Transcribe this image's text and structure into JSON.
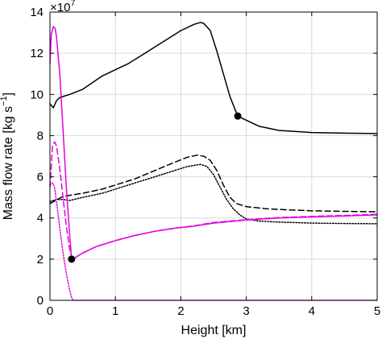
{
  "chart_data": {
    "type": "line",
    "xlabel": "Height [km]",
    "ylabel": {
      "prefix": "Mass flow rate [kg s",
      "superscript": "−1",
      "suffix": "]"
    },
    "multiplier": {
      "base": "×10",
      "exponent": "7"
    },
    "xlim": [
      0,
      5
    ],
    "ylim": [
      0,
      14
    ],
    "xticks": [
      0,
      1,
      2,
      3,
      4,
      5
    ],
    "yticks": [
      0,
      2,
      4,
      6,
      8,
      10,
      12,
      14
    ],
    "grid": true,
    "colors": {
      "black": "#000000",
      "magenta": "#e300e3"
    },
    "series": [
      {
        "color": "#000000",
        "dash": "solid",
        "points": [
          [
            0,
            9.55
          ],
          [
            0.05,
            9.35
          ],
          [
            0.1,
            9.7
          ],
          [
            0.15,
            9.85
          ],
          [
            0.3,
            10.0
          ],
          [
            0.5,
            10.25
          ],
          [
            0.8,
            10.9
          ],
          [
            1.0,
            11.2
          ],
          [
            1.2,
            11.5
          ],
          [
            1.4,
            11.9
          ],
          [
            1.6,
            12.3
          ],
          [
            1.8,
            12.7
          ],
          [
            2.0,
            13.1
          ],
          [
            2.2,
            13.4
          ],
          [
            2.3,
            13.5
          ],
          [
            2.35,
            13.45
          ],
          [
            2.45,
            13.1
          ],
          [
            2.55,
            12.1
          ],
          [
            2.65,
            11.0
          ],
          [
            2.75,
            9.9
          ],
          [
            2.85,
            9.1
          ],
          [
            2.9,
            8.9
          ],
          [
            3.0,
            8.75
          ],
          [
            3.2,
            8.45
          ],
          [
            3.5,
            8.25
          ],
          [
            4.0,
            8.15
          ],
          [
            4.5,
            8.12
          ],
          [
            5.0,
            8.1
          ]
        ]
      },
      {
        "color": "#000000",
        "dash": "dashed",
        "points": [
          [
            0,
            4.7
          ],
          [
            0.2,
            5.05
          ],
          [
            0.5,
            5.2
          ],
          [
            0.8,
            5.4
          ],
          [
            1.0,
            5.6
          ],
          [
            1.3,
            5.9
          ],
          [
            1.6,
            6.3
          ],
          [
            1.9,
            6.7
          ],
          [
            2.1,
            6.95
          ],
          [
            2.25,
            7.05
          ],
          [
            2.35,
            7.0
          ],
          [
            2.45,
            6.8
          ],
          [
            2.55,
            6.3
          ],
          [
            2.65,
            5.6
          ],
          [
            2.75,
            5.0
          ],
          [
            2.85,
            4.7
          ],
          [
            3.0,
            4.55
          ],
          [
            3.3,
            4.45
          ],
          [
            3.6,
            4.4
          ],
          [
            4.0,
            4.35
          ],
          [
            4.5,
            4.32
          ],
          [
            5.0,
            4.3
          ]
        ]
      },
      {
        "color": "#000000",
        "dash": "dotted",
        "points": [
          [
            0,
            4.8
          ],
          [
            0.1,
            4.9
          ],
          [
            0.2,
            4.9
          ],
          [
            0.3,
            4.85
          ],
          [
            0.5,
            5.0
          ],
          [
            0.8,
            5.2
          ],
          [
            1.0,
            5.4
          ],
          [
            1.3,
            5.7
          ],
          [
            1.6,
            6.0
          ],
          [
            1.9,
            6.3
          ],
          [
            2.1,
            6.5
          ],
          [
            2.3,
            6.6
          ],
          [
            2.4,
            6.5
          ],
          [
            2.5,
            6.1
          ],
          [
            2.6,
            5.5
          ],
          [
            2.7,
            4.9
          ],
          [
            2.8,
            4.45
          ],
          [
            2.9,
            4.15
          ],
          [
            3.0,
            3.95
          ],
          [
            3.2,
            3.85
          ],
          [
            3.5,
            3.8
          ],
          [
            4.0,
            3.75
          ],
          [
            4.5,
            3.73
          ],
          [
            5.0,
            3.72
          ]
        ]
      },
      {
        "color": "#e300e3",
        "dash": "solid",
        "points": [
          [
            0,
            11.5
          ],
          [
            0.02,
            12.9
          ],
          [
            0.05,
            13.3
          ],
          [
            0.08,
            13.2
          ],
          [
            0.1,
            12.8
          ],
          [
            0.15,
            11.0
          ],
          [
            0.2,
            8.3
          ],
          [
            0.25,
            5.5
          ],
          [
            0.3,
            3.2
          ],
          [
            0.33,
            2.05
          ],
          [
            0.36,
            2.0
          ],
          [
            0.4,
            2.1
          ],
          [
            0.5,
            2.3
          ],
          [
            0.7,
            2.6
          ],
          [
            1.0,
            2.9
          ],
          [
            1.3,
            3.15
          ],
          [
            1.6,
            3.35
          ],
          [
            1.9,
            3.5
          ],
          [
            2.2,
            3.6
          ],
          [
            2.5,
            3.75
          ],
          [
            3.0,
            3.9
          ],
          [
            3.5,
            4.0
          ],
          [
            4.0,
            4.05
          ],
          [
            4.5,
            4.1
          ],
          [
            5.0,
            4.15
          ]
        ]
      },
      {
        "color": "#e300e3",
        "dash": "dashed",
        "points": [
          [
            0,
            5.5
          ],
          [
            0.04,
            7.5
          ],
          [
            0.07,
            7.7
          ],
          [
            0.1,
            7.5
          ],
          [
            0.15,
            6.4
          ],
          [
            0.2,
            5.0
          ],
          [
            0.25,
            3.6
          ],
          [
            0.3,
            2.5
          ],
          [
            0.34,
            2.0
          ],
          [
            0.4,
            2.1
          ],
          [
            0.5,
            2.3
          ],
          [
            0.7,
            2.6
          ],
          [
            1.0,
            2.9
          ],
          [
            1.3,
            3.15
          ],
          [
            1.6,
            3.35
          ],
          [
            1.9,
            3.5
          ],
          [
            2.2,
            3.62
          ],
          [
            2.5,
            3.78
          ],
          [
            3.0,
            3.92
          ],
          [
            3.5,
            4.02
          ],
          [
            4.0,
            4.08
          ],
          [
            4.5,
            4.12
          ],
          [
            5.0,
            4.18
          ]
        ]
      },
      {
        "color": "#e300e3",
        "dash": "dotted",
        "points": [
          [
            0,
            5.6
          ],
          [
            0.04,
            5.7
          ],
          [
            0.07,
            5.5
          ],
          [
            0.1,
            4.8
          ],
          [
            0.15,
            3.5
          ],
          [
            0.2,
            2.3
          ],
          [
            0.25,
            1.3
          ],
          [
            0.3,
            0.5
          ],
          [
            0.33,
            0.15
          ],
          [
            0.35,
            0.0
          ],
          [
            5.0,
            0.0
          ]
        ]
      }
    ],
    "markers": [
      {
        "color": "#000000",
        "x": 2.87,
        "y": 8.95
      },
      {
        "color": "#000000",
        "x": 0.33,
        "y": 2.0
      }
    ]
  }
}
